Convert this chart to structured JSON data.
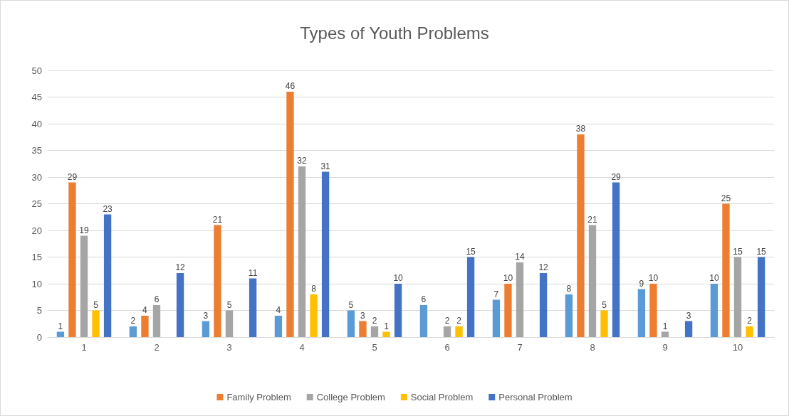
{
  "chart_data": {
    "type": "bar",
    "title": "Types of Youth Problems",
    "categories": [
      "1",
      "2",
      "3",
      "4",
      "5",
      "6",
      "7",
      "8",
      "9",
      "10"
    ],
    "series": [
      {
        "color": "#5b9bd5",
        "values": [
          1,
          2,
          3,
          4,
          5,
          6,
          7,
          8,
          9,
          10
        ]
      },
      {
        "name": "Family Problem",
        "color": "#ed7d31",
        "values": [
          29,
          4,
          21,
          46,
          3,
          null,
          10,
          38,
          10,
          25
        ]
      },
      {
        "name": "College Problem",
        "color": "#a5a5a5",
        "values": [
          19,
          6,
          5,
          32,
          2,
          2,
          14,
          21,
          1,
          15
        ]
      },
      {
        "name": "Social Problem",
        "color": "#ffc000",
        "values": [
          5,
          null,
          null,
          8,
          1,
          2,
          null,
          5,
          null,
          2
        ]
      },
      {
        "name": "Personal Problem",
        "color": "#4472c4",
        "values": [
          23,
          12,
          11,
          31,
          10,
          15,
          12,
          29,
          3,
          15
        ]
      }
    ],
    "ylim": [
      0,
      50
    ],
    "yticks": [
      0,
      5,
      10,
      15,
      20,
      25,
      30,
      35,
      40,
      45,
      50
    ],
    "grid": "y",
    "legend": "bottom",
    "data_labels": true
  }
}
